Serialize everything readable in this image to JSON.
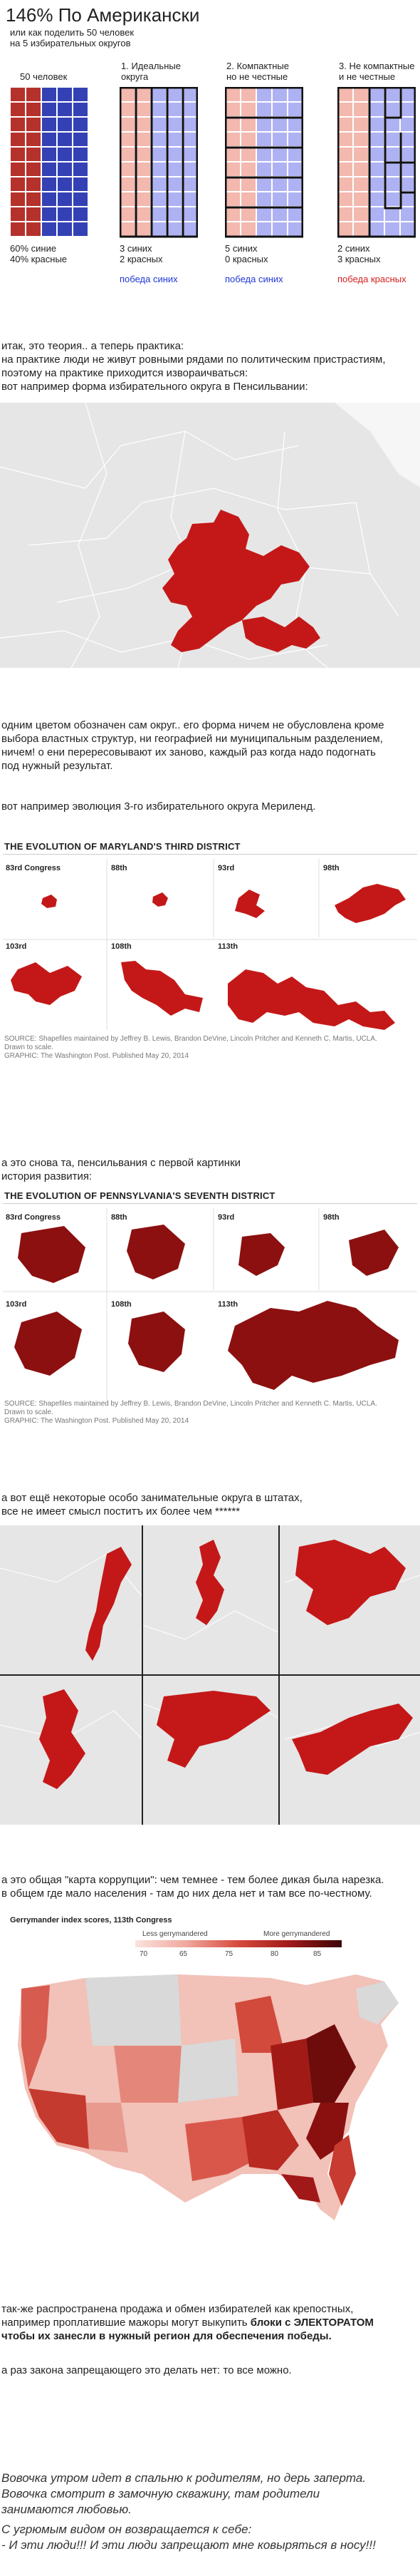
{
  "title": "146% По Американски",
  "subtitle": [
    "или как поделить 50 человек",
    "на 5 избирательных округов"
  ],
  "panels": [
    {
      "header": [
        "50 человек"
      ],
      "result": [
        "60% синие",
        "40% красные"
      ],
      "outcome": ""
    },
    {
      "header": [
        "1. Идеальные",
        "округа"
      ],
      "result": [
        "3 синих",
        "2 красных"
      ],
      "outcome": "победа синих"
    },
    {
      "header": [
        "2. Компактные",
        "но не честные"
      ],
      "result": [
        "5 синих",
        "0 красных"
      ],
      "outcome": "победа синих"
    },
    {
      "header": [
        "3. Не компактные",
        "и не честные"
      ],
      "result": [
        "2 синих",
        "3 красных"
      ],
      "outcome": "победа красных"
    }
  ],
  "colors": {
    "red": "#b5322c",
    "blue": "#3441b5",
    "pale_red": "#f3b8ae",
    "pale_blue": "#aeb2f3",
    "link_blue": "#1f37d6",
    "link_red": "#d51f1f",
    "district_red": "#c41818",
    "dark_red": "#8c1010"
  },
  "text1": [
    "итак, это теория.. а теперь практика:",
    "на практике люди не живут ровными рядами по политическим пристрастиям,",
    "поэтому на практике приходится извораичваться:",
    "вот например форма избирательного округа в Пенсильвании:"
  ],
  "text2": [
    "одним цветом обозначен сам округ..  его форма ничем не обусловлена кроме",
    "выбора властных структур, ни географией ни муниципальным разделением,",
    "ничем! о ени перересовывают их заново,  каждый раз когда надо подогнать",
    "под нужный результат."
  ],
  "text3": "вот например эволюция 3-го избирательного округа Мериленд.",
  "md": {
    "title": "THE EVOLUTION OF MARYLAND'S THIRD DISTRICT",
    "labels": [
      "83rd Congress",
      "88th",
      "93rd",
      "98th",
      "103rd",
      "108th",
      "113th"
    ],
    "source": [
      "SOURCE: Shapefiles maintained by Jeffrey B. Lewis, Brandon DeVine, Lincoln Pritcher and Kenneth C. Martis, UCLA.",
      "Drawn to scale.",
      "GRAPHIC: The Washington Post. Published May 20, 2014"
    ]
  },
  "text4": [
    "а это снова та, пенсильвания с первой картинки",
    "история развития:"
  ],
  "pa": {
    "title": "THE EVOLUTION OF PENNSYLVANIA'S SEVENTH DISTRICT",
    "labels": [
      "83rd Congress",
      "88th",
      "93rd",
      "98th",
      "103rd",
      "108th",
      "113th"
    ],
    "source": [
      "SOURCE: Shapefiles maintained by Jeffrey B. Lewis, Brandon DeVine, Lincoln Pritcher and Kenneth C. Martis, UCLA.",
      "Drawn to scale.",
      "GRAPHIC: The Washington Post. Published May 20, 2014"
    ]
  },
  "text5": [
    "а вот ещё некоторые особо занимательные округа в штатах,",
    "все не имеет смысл поститъ их более чем ******"
  ],
  "text6": [
    "а это общая \"карта коррупции\":  чем темнее - тем более дикая была нарезка.",
    "в общем где мало населения - там до них дела нет и там все по-честному."
  ],
  "gm": {
    "title": "Gerrymander index scores, 113th Congress",
    "less": "Less gerrymandered",
    "more": "More gerrymandered",
    "ticks": [
      "70",
      "65",
      "75",
      "80",
      "85"
    ]
  },
  "text7a": "так-же распространена продажа и обмен избирателей как крепостных,",
  "text7b_pre": "например проплатившие мажоры могут выкупить ",
  "text7b_bold": "блоки с ЭЛЕКТОРАТОМ",
  "text7c": "чтобы их занесли в нужный регион для обеспечения победы.",
  "text8": "а раз закона запрещающего это делать нет: то все можно.",
  "joke": [
    "Вовочка утром идет в спальню к родителям, но дерь заперта.",
    "Вовочка смотрит в замочную скважину, там родители",
    "занимаются любовью.",
    "С угрюмым видом он возвращается к себе:",
    "- И эти люди!!! И эти люди запрещают мне ковыряться в носу!!!"
  ]
}
